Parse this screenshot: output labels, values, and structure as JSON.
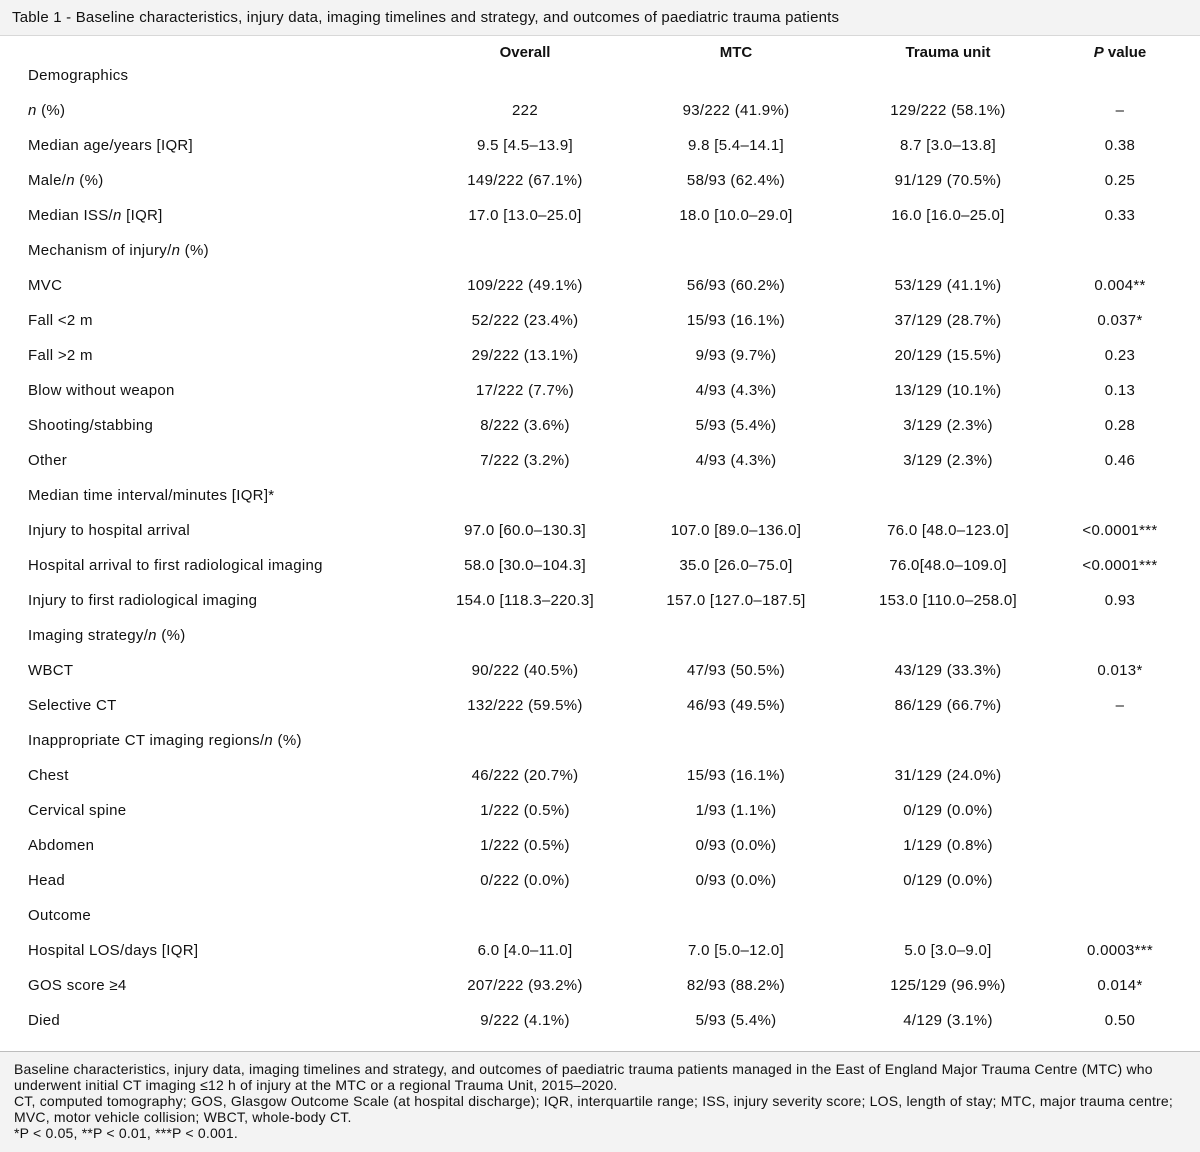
{
  "title": "Table 1 - Baseline characteristics, injury data, imaging timelines and strategy, and outcomes of paediatric trauma patients",
  "headers": {
    "overall": "Overall",
    "mtc": "MTC",
    "trauma_unit": "Trauma unit",
    "p_value": "P value"
  },
  "rows": [
    {
      "label": "Demographics",
      "section": true
    },
    {
      "label": "n (%)",
      "overall": "222",
      "mtc": "93/222 (41.9%)",
      "tu": "129/222 (58.1%)",
      "p": "–"
    },
    {
      "label": "Median age/years [IQR]",
      "overall": "9.5 [4.5–13.9]",
      "mtc": "9.8 [5.4–14.1]",
      "tu": "8.7 [3.0–13.8]",
      "p": "0.38"
    },
    {
      "label": "Male/n (%)",
      "overall": "149/222 (67.1%)",
      "mtc": "58/93 (62.4%)",
      "tu": "91/129 (70.5%)",
      "p": "0.25"
    },
    {
      "label": "Median ISS/n [IQR]",
      "overall": "17.0 [13.0–25.0]",
      "mtc": "18.0 [10.0–29.0]",
      "tu": "16.0 [16.0–25.0]",
      "p": "0.33"
    },
    {
      "label": "Mechanism of injury/n (%)",
      "section": true
    },
    {
      "label": "MVC",
      "overall": "109/222 (49.1%)",
      "mtc": "56/93 (60.2%)",
      "tu": "53/129 (41.1%)",
      "p": "0.004**"
    },
    {
      "label": "Fall <2 m",
      "overall": "52/222 (23.4%)",
      "mtc": "15/93 (16.1%)",
      "tu": "37/129 (28.7%)",
      "p": "0.037*"
    },
    {
      "label": "Fall >2 m",
      "overall": "29/222 (13.1%)",
      "mtc": "9/93 (9.7%)",
      "tu": "20/129 (15.5%)",
      "p": "0.23"
    },
    {
      "label": "Blow without weapon",
      "overall": "17/222 (7.7%)",
      "mtc": "4/93 (4.3%)",
      "tu": "13/129 (10.1%)",
      "p": "0.13"
    },
    {
      "label": "Shooting/stabbing",
      "overall": "8/222 (3.6%)",
      "mtc": "5/93 (5.4%)",
      "tu": "3/129 (2.3%)",
      "p": "0.28"
    },
    {
      "label": "Other",
      "overall": "7/222 (3.2%)",
      "mtc": "4/93 (4.3%)",
      "tu": "3/129 (2.3%)",
      "p": "0.46"
    },
    {
      "label": "Median time interval/minutes [IQR]*",
      "section": true
    },
    {
      "label": "Injury to hospital arrival",
      "overall": "97.0 [60.0–130.3]",
      "mtc": "107.0 [89.0–136.0]",
      "tu": "76.0 [48.0–123.0]",
      "p": "<0.0001***"
    },
    {
      "label": "Hospital arrival to first radiological imaging",
      "overall": "58.0 [30.0–104.3]",
      "mtc": "35.0 [26.0–75.0]",
      "tu": "76.0[48.0–109.0]",
      "p": "<0.0001***"
    },
    {
      "label": "Injury to first radiological imaging",
      "overall": "154.0 [118.3–220.3]",
      "mtc": "157.0 [127.0–187.5]",
      "tu": "153.0 [110.0–258.0]",
      "p": "0.93"
    },
    {
      "label": "Imaging strategy/n (%)",
      "section": true
    },
    {
      "label": "WBCT",
      "overall": "90/222 (40.5%)",
      "mtc": "47/93 (50.5%)",
      "tu": "43/129 (33.3%)",
      "p": "0.013*"
    },
    {
      "label": "Selective CT",
      "overall": "132/222 (59.5%)",
      "mtc": "46/93 (49.5%)",
      "tu": "86/129 (66.7%)",
      "p": "–"
    },
    {
      "label": "Inappropriate CT imaging regions/n (%)",
      "section": true
    },
    {
      "label": "Chest",
      "overall": "46/222 (20.7%)",
      "mtc": "15/93 (16.1%)",
      "tu": "31/129 (24.0%)",
      "p": ""
    },
    {
      "label": "Cervical spine",
      "overall": "1/222 (0.5%)",
      "mtc": "1/93 (1.1%)",
      "tu": "0/129 (0.0%)",
      "p": ""
    },
    {
      "label": "Abdomen",
      "overall": "1/222 (0.5%)",
      "mtc": "0/93 (0.0%)",
      "tu": "1/129 (0.8%)",
      "p": ""
    },
    {
      "label": "Head",
      "overall": "0/222 (0.0%)",
      "mtc": "0/93 (0.0%)",
      "tu": "0/129 (0.0%)",
      "p": ""
    },
    {
      "label": "Outcome",
      "section": true
    },
    {
      "label": "Hospital LOS/days [IQR]",
      "overall": "6.0 [4.0–11.0]",
      "mtc": "7.0 [5.0–12.0]",
      "tu": "5.0 [3.0–9.0]",
      "p": "0.0003***"
    },
    {
      "label": "GOS score ≥4",
      "overall": "207/222 (93.2%)",
      "mtc": "82/93 (88.2%)",
      "tu": "125/129 (96.9%)",
      "p": "0.014*"
    },
    {
      "label": "Died",
      "overall": "9/222 (4.1%)",
      "mtc": "5/93 (5.4%)",
      "tu": "4/129 (3.1%)",
      "p": "0.50"
    }
  ],
  "footer": {
    "line1": "Baseline characteristics, injury data, imaging timelines and strategy, and outcomes of paediatric trauma patients managed in the East of England Major Trauma Centre (MTC) who underwent initial CT imaging ≤12 h of injury at the MTC or a regional Trauma Unit, 2015–2020.",
    "line2": "CT, computed tomography; GOS, Glasgow Outcome Scale (at hospital discharge); IQR, interquartile range; ISS, injury severity score; LOS, length of stay; MTC, major trauma centre; MVC, motor vehicle collision; WBCT, whole-body CT.",
    "line3": "*P < 0.05, **P < 0.01, ***P < 0.001."
  }
}
